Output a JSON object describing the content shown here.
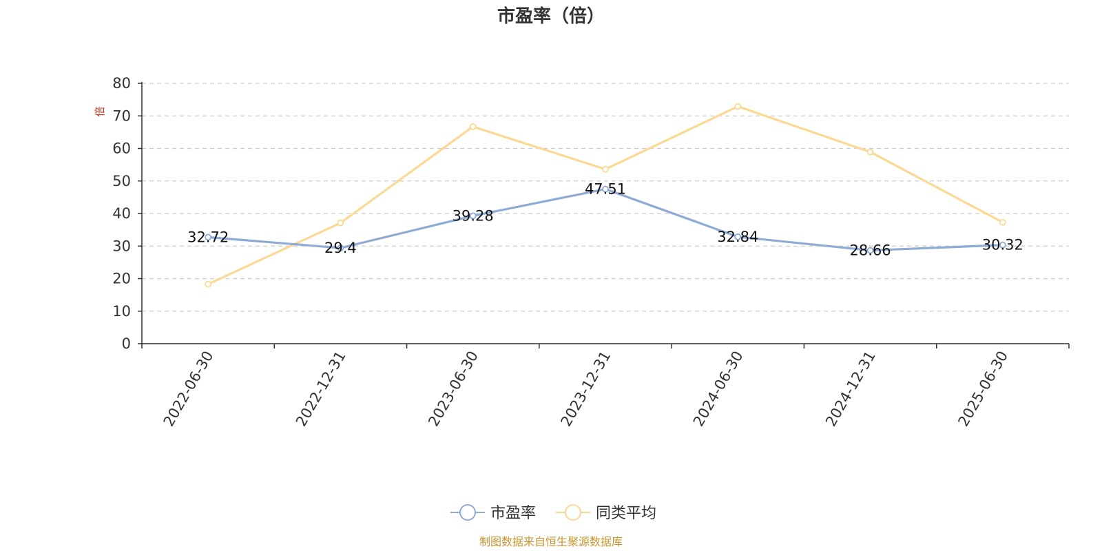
{
  "chart_data": {
    "type": "line",
    "title": "市盈率（倍）",
    "ylabel": "倍",
    "categories": [
      "2022-06-30",
      "2022-12-31",
      "2023-06-30",
      "2023-12-31",
      "2024-06-30",
      "2024-12-31",
      "2025-06-30"
    ],
    "ylim": [
      0,
      80
    ],
    "yticks": [
      0,
      10,
      20,
      30,
      40,
      50,
      60,
      70,
      80
    ],
    "grid": true,
    "legend_position": "bottom",
    "series": [
      {
        "name": "市盈率",
        "values": [
          32.72,
          29.4,
          39.28,
          47.51,
          32.84,
          28.66,
          30.32
        ],
        "color": "#8eabd6",
        "labels": [
          "32.72",
          "29.4",
          "39.28",
          "47.51",
          "32.84",
          "28.66",
          "30.32"
        ]
      },
      {
        "name": "同类平均",
        "values": [
          18.3,
          37.1,
          66.7,
          53.6,
          72.9,
          58.9,
          37.3
        ],
        "color": "#fbd995"
      }
    ]
  },
  "footer": {
    "source": "制图数据来自恒生聚源数据库"
  },
  "colors": {
    "ylabel": "#e0261b",
    "source": "#c8952e"
  }
}
